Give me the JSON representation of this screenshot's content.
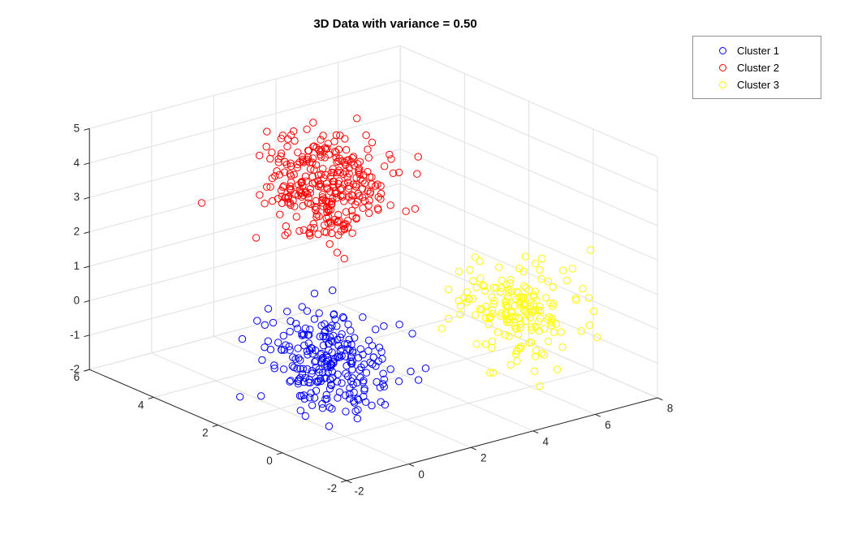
{
  "title": "3D Data with variance = 0.50",
  "legend": {
    "items": [
      {
        "label": "Cluster 1",
        "color": "#0000ff"
      },
      {
        "label": "Cluster 2",
        "color": "#ff0000"
      },
      {
        "label": "Cluster 3",
        "color": "#ffff00"
      }
    ]
  },
  "chart_data": {
    "type": "scatter",
    "projection": "3d",
    "title": "3D Data with variance = 0.50",
    "variance_label": "0.50",
    "grid": true,
    "legend_position": "northeast-outside",
    "view": {
      "azimuth": -37.5,
      "elevation": 30
    },
    "axes": {
      "x": {
        "range": [
          -2,
          8
        ],
        "ticks": [
          -2,
          0,
          2,
          4,
          6,
          8
        ]
      },
      "y": {
        "range": [
          -2,
          6
        ],
        "ticks": [
          -2,
          0,
          2,
          4,
          6
        ]
      },
      "z": {
        "range": [
          -2,
          5
        ],
        "ticks": [
          -2,
          -1,
          0,
          1,
          2,
          3,
          4,
          5
        ]
      }
    },
    "series": [
      {
        "name": "Cluster 1",
        "color": "#0000ff",
        "marker": "circle-open",
        "center": [
          1.5,
          2.0,
          -1.0
        ],
        "variance": 0.5,
        "count": 260,
        "seed": 7
      },
      {
        "name": "Cluster 2",
        "color": "#ff0000",
        "marker": "circle-open",
        "center": [
          2.5,
          3.0,
          3.5
        ],
        "variance": 0.5,
        "count": 320,
        "seed": 42
      },
      {
        "name": "Cluster 3",
        "color": "#ffff00",
        "marker": "circle-open",
        "center": [
          6.6,
          1.0,
          -0.4
        ],
        "variance": 0.5,
        "count": 180,
        "seed": 1337
      }
    ]
  }
}
